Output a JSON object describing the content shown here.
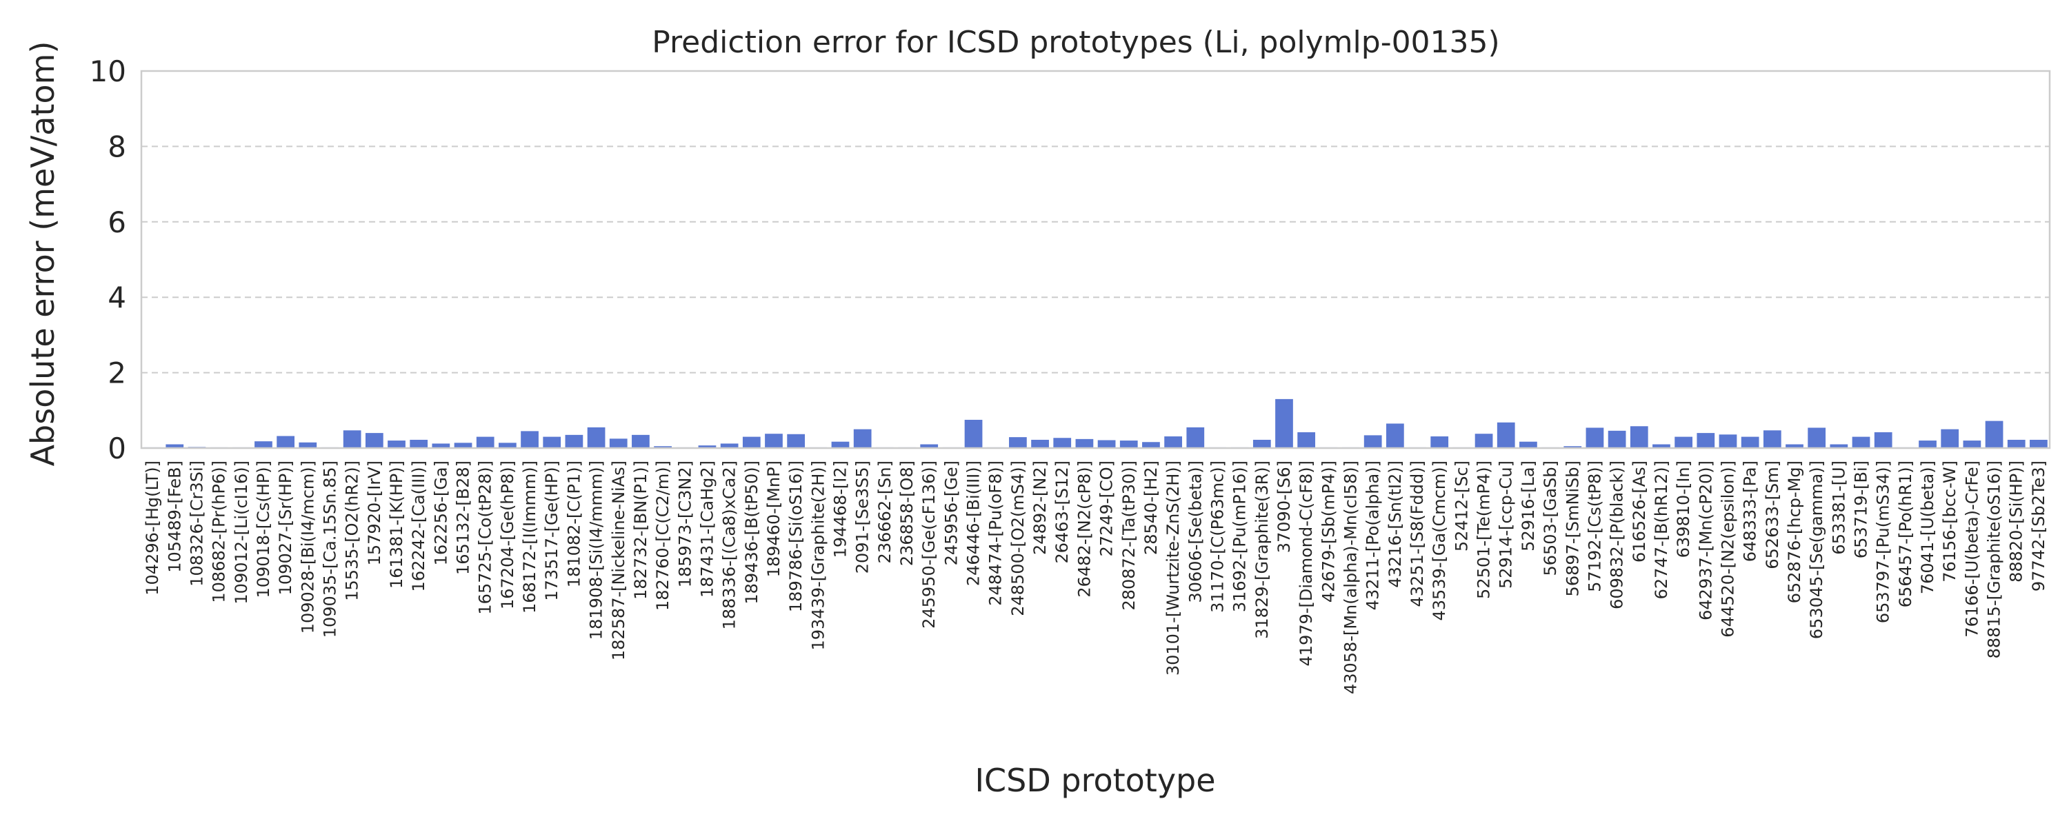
{
  "chart_data": {
    "type": "bar",
    "title": "Prediction error for ICSD prototypes (Li, polymlp-00135)",
    "xlabel": "ICSD prototype",
    "ylabel": "Absolute error (meV/atom)",
    "ylim": [
      0,
      10
    ],
    "yticks": [
      0,
      2,
      4,
      6,
      8,
      10
    ],
    "grid": "horizontal dashed",
    "bar_color": "#5a78d2",
    "categories": [
      "104296-[Hg(LT)]",
      "105489-[FeB]",
      "108326-[Cr3Si]",
      "108682-[Pr(hP6)]",
      "109012-[Li(cI16)]",
      "109018-[Cs(HP)]",
      "109027-[Sr(HP)]",
      "109028-[Bi(I4/mcm)]",
      "109035-[Ca.15Sn.85]",
      "15535-[O2(hR2)]",
      "157920-[IrV]",
      "161381-[K(HP)]",
      "162242-[Ca(III)]",
      "162256-[Ga]",
      "165132-[B28]",
      "165725-[Co(tP28)]",
      "167204-[Ge(hP8)]",
      "168172-[I(Immm)]",
      "173517-[Ge(HP)]",
      "181082-[C(P1)]",
      "181908-[Si(I4/mmm)]",
      "182587-[Nickeline-NiAs]",
      "182732-[BN(P1)]",
      "182760-[C(C2/m)]",
      "185973-[C3N2]",
      "187431-[CaHg2]",
      "188336-[(Ca8)xCa2]",
      "189436-[B(tP50)]",
      "189460-[MnP]",
      "189786-[Si(oS16)]",
      "193439-[Graphite(2H)]",
      "194468-[I2]",
      "2091-[Se3S5]",
      "236662-[Sn]",
      "236858-[O8]",
      "245950-[Ge(cF136)]",
      "245956-[Ge]",
      "246446-[Bi(III)]",
      "248474-[Pu(oF8)]",
      "248500-[O2(mS4)]",
      "24892-[N2]",
      "26463-[S12]",
      "26482-[N2(cP8)]",
      "27249-[CO]",
      "280872-[Ta(tP30)]",
      "28540-[H2]",
      "30101-[Wurtzite-ZnS(2H)]",
      "30606-[Se(beta)]",
      "31170-[C(P63mc)]",
      "31692-[Pu(mP16)]",
      "31829-[Graphite(3R)]",
      "37090-[S6]",
      "41979-[Diamond-C(cF8)]",
      "42679-[Sb(mP4)]",
      "43058-[Mn(alpha)-Mn(cI58)]",
      "43211-[Po(alpha)]",
      "43216-[Sn(tI2)]",
      "43251-[S8(Fddd)]",
      "43539-[Ga(Cmcm)]",
      "52412-[Sc]",
      "52501-[Te(mP4)]",
      "52914-[ccp-Cu]",
      "52916-[La]",
      "56503-[GaSb]",
      "56897-[SmNiSb]",
      "57192-[Cs(tP8)]",
      "609832-[P(black)]",
      "616526-[As]",
      "62747-[B(hR12)]",
      "639810-[In]",
      "642937-[Mn(cP20)]",
      "644520-[N2(epsilon)]",
      "648333-[Pa]",
      "652633-[Sm]",
      "652876-[hcp-Mg]",
      "653045-[Se(gamma)]",
      "653381-[U]",
      "653719-[Bi]",
      "653797-[Pu(mS34)]",
      "656457-[Po(hR1)]",
      "76041-[U(beta)]",
      "76156-[bcc-W]",
      "76166-[U(beta)-CrFe]",
      "88815-[Graphite(oS16)]",
      "88820-[Si(HP)]",
      "97742-[Sb2Te3]"
    ],
    "values": [
      0.02,
      0.1,
      0.03,
      0.02,
      0.02,
      0.18,
      0.32,
      0.15,
      0.02,
      0.47,
      0.4,
      0.2,
      0.22,
      0.12,
      0.14,
      0.3,
      0.14,
      0.45,
      0.3,
      0.35,
      0.55,
      0.25,
      0.35,
      0.05,
      0.02,
      0.07,
      0.12,
      0.3,
      0.38,
      0.37,
      0.02,
      0.17,
      0.5,
      0.02,
      0.02,
      0.1,
      0.02,
      0.75,
      0.02,
      0.29,
      0.22,
      0.27,
      0.24,
      0.21,
      0.2,
      0.16,
      0.31,
      0.55,
      0.02,
      0.02,
      0.22,
      1.3,
      0.42,
      0.02,
      0.02,
      0.34,
      0.65,
      0.02,
      0.31,
      0.02,
      0.38,
      0.68,
      0.17,
      0.02,
      0.05,
      0.54,
      0.46,
      0.58,
      0.1,
      0.3,
      0.4,
      0.36,
      0.3,
      0.47,
      0.1,
      0.54,
      0.1,
      0.3,
      0.42,
      0.02,
      0.2,
      0.5,
      0.2,
      0.72,
      0.22,
      0.22
    ]
  }
}
